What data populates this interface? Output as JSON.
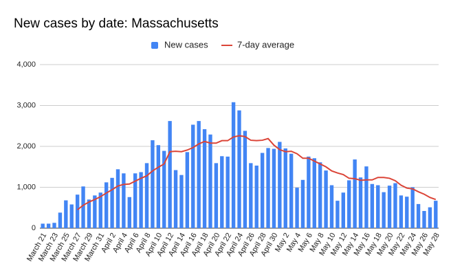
{
  "chart_data": {
    "type": "bar",
    "title": "New cases by date: Massachusetts",
    "categories": [
      "March 21",
      null,
      "March 23",
      null,
      "March 25",
      null,
      "March 27",
      null,
      "March 29",
      null,
      "March 31",
      null,
      "April 2",
      null,
      "April 4",
      null,
      "April 6",
      null,
      "April 8",
      null,
      "April 10",
      null,
      "April 12",
      null,
      "April 14",
      null,
      "April 16",
      null,
      "April 18",
      null,
      "April 20",
      null,
      "April 22",
      null,
      "April 24",
      null,
      "April 26",
      null,
      "April 28",
      null,
      "April 30",
      null,
      "May 2",
      null,
      "May 4",
      null,
      "May 6",
      null,
      "May 8",
      null,
      "May 10",
      null,
      "May 12",
      null,
      "May 14",
      null,
      "May 16",
      null,
      "May 18",
      null,
      "May 20",
      null,
      "May 22",
      null,
      "May 24",
      null,
      "May 26",
      null,
      "May 28"
    ],
    "series": [
      {
        "name": "New cases",
        "type": "bar",
        "color": "#4285f4",
        "values": [
          110,
          110,
          130,
          380,
          680,
          580,
          820,
          1020,
          700,
          800,
          870,
          1120,
          1230,
          1440,
          1340,
          760,
          1340,
          1370,
          1590,
          2150,
          2030,
          1890,
          2620,
          1420,
          1300,
          1860,
          2530,
          2620,
          2420,
          2290,
          1590,
          1760,
          1750,
          3080,
          2880,
          2380,
          1590,
          1530,
          1840,
          1960,
          1940,
          2110,
          1950,
          1820,
          990,
          1180,
          1750,
          1710,
          1610,
          1410,
          1050,
          670,
          870,
          1170,
          1680,
          1240,
          1510,
          1080,
          1050,
          880,
          1040,
          1100,
          800,
          770,
          1000,
          590,
          420,
          510,
          670
        ]
      },
      {
        "name": "7-day average",
        "type": "line",
        "color": "#db4437",
        "values": [
          null,
          null,
          null,
          null,
          null,
          null,
          450,
          560,
          640,
          700,
          770,
          860,
          940,
          1030,
          1070,
          1080,
          1150,
          1220,
          1280,
          1400,
          1490,
          1570,
          1870,
          1880,
          1870,
          1910,
          1970,
          2060,
          2120,
          2080,
          2080,
          2140,
          2140,
          2230,
          2260,
          2240,
          2150,
          2140,
          2150,
          2190,
          2030,
          1920,
          1870,
          1880,
          1820,
          1710,
          1710,
          1640,
          1570,
          1500,
          1400,
          1350,
          1310,
          1220,
          1210,
          1170,
          1180,
          1180,
          1240,
          1240,
          1220,
          1160,
          1050,
          980,
          960,
          890,
          830,
          750,
          700
        ]
      }
    ],
    "ylim": [
      0,
      4000
    ],
    "yticks": [
      0,
      {
        "value": 1000,
        "label": "1,000"
      },
      {
        "value": 2000,
        "label": "2,000"
      },
      {
        "value": 3000,
        "label": "3,000"
      },
      {
        "value": 4000,
        "label": "4,000"
      }
    ],
    "grid": true,
    "legend": "top"
  }
}
